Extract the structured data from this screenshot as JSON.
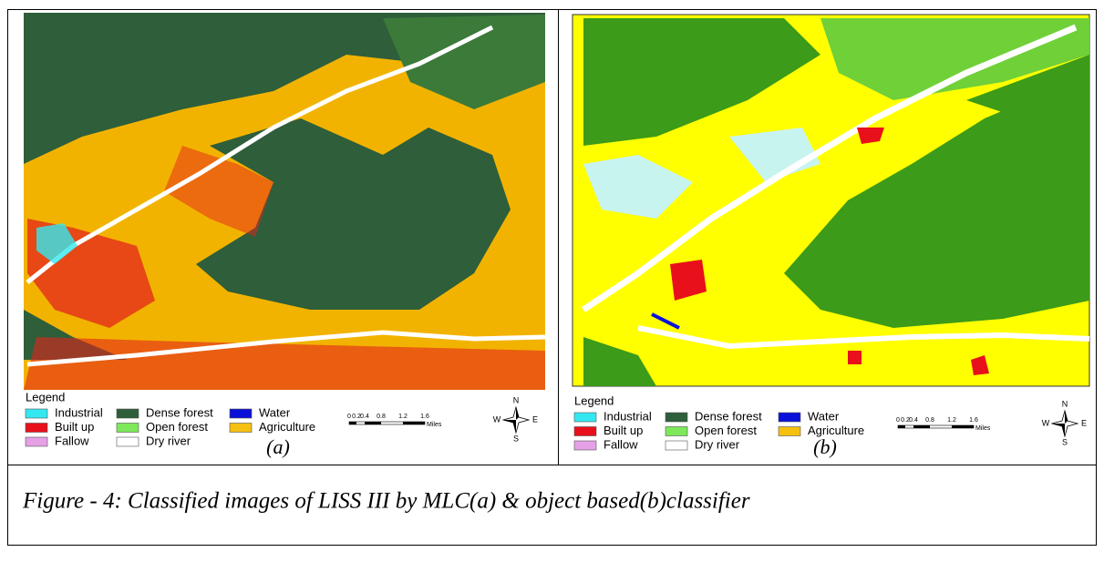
{
  "panels": [
    {
      "legend_title": "Legend",
      "legend": [
        {
          "label": "Industrial",
          "color": "#33e8f0"
        },
        {
          "label": "Built up",
          "color": "#e8101a"
        },
        {
          "label": "Fallow",
          "color": "#e6a0e6"
        },
        {
          "label": "Dense forest",
          "color": "#2e5e3a"
        },
        {
          "label": "Open forest",
          "color": "#7de85a"
        },
        {
          "label": "Dry river",
          "color": "#ffffff"
        },
        {
          "label": "Water",
          "color": "#0a10d8"
        },
        {
          "label": "Agriculture",
          "color": "#f5c010"
        }
      ],
      "scale": {
        "ticks": [
          "0",
          "0.2",
          "0.4",
          "0.8",
          "1.2",
          "1.6"
        ],
        "unit": "Miles"
      },
      "compass": {
        "n": "N",
        "e": "E",
        "s": "S",
        "w": "W"
      },
      "label": "(a)"
    },
    {
      "legend_title": "Legend",
      "legend": [
        {
          "label": "Industrial",
          "color": "#33e8f0"
        },
        {
          "label": "Built up",
          "color": "#e8101a"
        },
        {
          "label": "Fallow",
          "color": "#e6a0e6"
        },
        {
          "label": "Dense forest",
          "color": "#2e5e3a"
        },
        {
          "label": "Open forest",
          "color": "#7de85a"
        },
        {
          "label": "Dry river",
          "color": "#ffffff"
        },
        {
          "label": "Water",
          "color": "#0a10d8"
        },
        {
          "label": "Agriculture",
          "color": "#f5c010"
        }
      ],
      "scale": {
        "ticks": [
          "0",
          "0.2",
          "0.4",
          "0.8",
          "1.2",
          "1.6"
        ],
        "unit": "Miles"
      },
      "compass": {
        "n": "N",
        "e": "E",
        "s": "S",
        "w": "W"
      },
      "label": "(b)"
    }
  ],
  "caption": "Figure - 4: Classified images of LISS III by MLC(a) & object based(b)classifier"
}
